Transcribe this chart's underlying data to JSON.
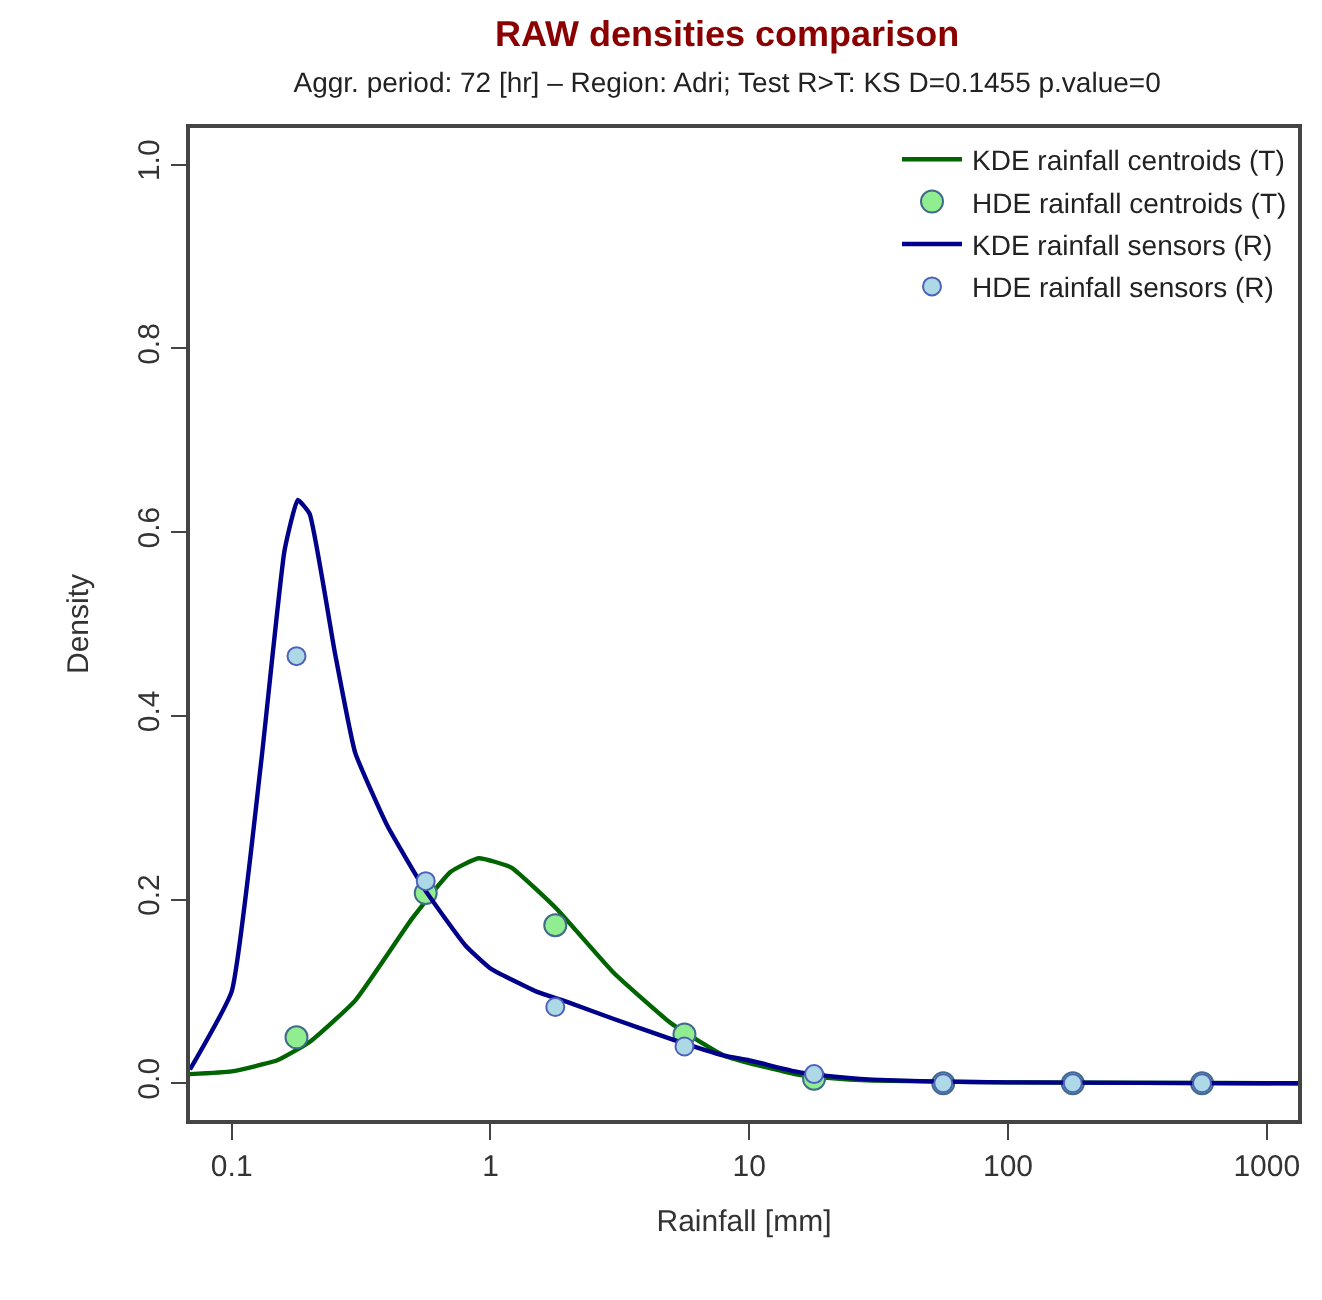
{
  "chart_data": {
    "type": "line",
    "title": "RAW densities comparison",
    "subtitle": "Aggr. period: 72 [hr] – Region: Adri; Test R>T: KS D=0.1455 p.value=0",
    "xlabel": "Rainfall [mm]",
    "ylabel": "Density",
    "log": "x",
    "xlim": [
      0.069,
      1320
    ],
    "xticks": [
      0.1,
      1,
      10,
      100,
      1000
    ],
    "ylim": [
      -0.04,
      1.04
    ],
    "yticks": [
      {
        "value": 0,
        "label": "0.0"
      },
      {
        "value": 0.2,
        "label": "0.2"
      },
      {
        "value": 0.4,
        "label": "0.4"
      },
      {
        "value": 0.6,
        "label": "0.6"
      },
      {
        "value": 0.8,
        "label": "0.8"
      },
      {
        "value": 1,
        "label": "1.0"
      }
    ],
    "grid": false,
    "legend": "top right",
    "series": [
      {
        "name": "KDE rainfall centroids (T)",
        "marker": "none",
        "color": "#006400",
        "x": [
          0.069,
          0.1,
          0.15,
          0.2,
          0.3,
          0.5,
          0.7,
          0.9,
          1.2,
          1.8,
          3,
          5,
          8,
          10,
          15,
          20,
          30,
          100,
          1320
        ],
        "values": [
          0.01,
          0.013,
          0.025,
          0.045,
          0.09,
          0.18,
          0.23,
          0.245,
          0.235,
          0.19,
          0.12,
          0.065,
          0.03,
          0.022,
          0.01,
          0.006,
          0.003,
          0.001,
          0
        ]
      },
      {
        "name": "HDE rainfall centroids (T)",
        "type": "scatter",
        "marker": "circle",
        "color": "#90ee90",
        "x": [
          0.178,
          0.562,
          1.78,
          5.62,
          17.8,
          56.2,
          178,
          562
        ],
        "values": [
          0.05,
          0.207,
          0.172,
          0.053,
          0.005,
          0,
          0,
          0
        ]
      },
      {
        "name": "KDE rainfall sensors (R)",
        "marker": "none",
        "color": "#00008b",
        "x": [
          0.069,
          0.1,
          0.13,
          0.16,
          0.18,
          0.2,
          0.25,
          0.3,
          0.4,
          0.56,
          0.8,
          1,
          1.5,
          2,
          3,
          5,
          8,
          10,
          15,
          20,
          30,
          50,
          100,
          1000,
          1320
        ],
        "values": [
          0.015,
          0.1,
          0.35,
          0.58,
          0.635,
          0.62,
          0.47,
          0.36,
          0.28,
          0.21,
          0.15,
          0.125,
          0.1,
          0.088,
          0.07,
          0.048,
          0.03,
          0.025,
          0.013,
          0.008,
          0.004,
          0.002,
          0.001,
          0,
          0
        ]
      },
      {
        "name": "HDE rainfall sensors (R)",
        "type": "scatter",
        "marker": "circle",
        "color": "#add8e6",
        "x": [
          0.178,
          0.562,
          1.78,
          5.62,
          17.8,
          56.2,
          178,
          562
        ],
        "values": [
          0.465,
          0.22,
          0.083,
          0.04,
          0.01,
          0,
          0,
          0
        ]
      }
    ]
  }
}
